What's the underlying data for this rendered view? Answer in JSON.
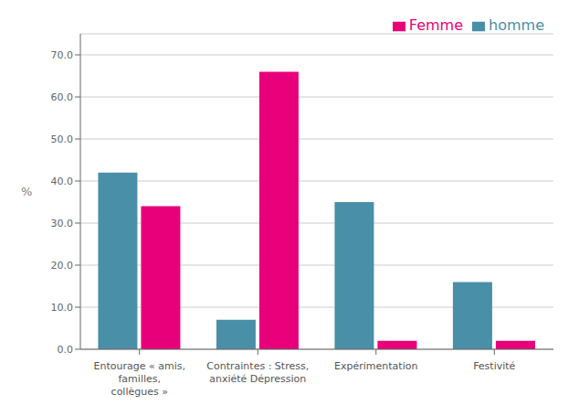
{
  "chart_data": {
    "type": "bar",
    "categories": [
      "Entourage « amis,\nfamilles,\ncollègues »",
      "Contraintes : Stress,\nanxiété Dépression",
      "Expérimentation",
      "Festivité"
    ],
    "series": [
      {
        "name": "homme",
        "color": "#4a8fa8",
        "values": [
          42.0,
          7.0,
          35.0,
          16.0
        ]
      },
      {
        "name": "Femme",
        "color": "#e8007a",
        "values": [
          34.0,
          66.0,
          2.0,
          2.0
        ]
      }
    ],
    "ylabel": "%",
    "ylim": [
      0,
      75
    ],
    "yticks": [
      {
        "value": 0,
        "label": "0.0"
      },
      {
        "value": 10,
        "label": "10.0"
      },
      {
        "value": 20,
        "label": "20.0"
      },
      {
        "value": 30,
        "label": "30.0"
      },
      {
        "value": 40,
        "label": "40.0"
      },
      {
        "value": 50,
        "label": "50.0"
      },
      {
        "value": 60,
        "label": "60.0"
      },
      {
        "value": 70,
        "label": "70.0"
      }
    ],
    "grid": true,
    "legend": "upper right"
  }
}
